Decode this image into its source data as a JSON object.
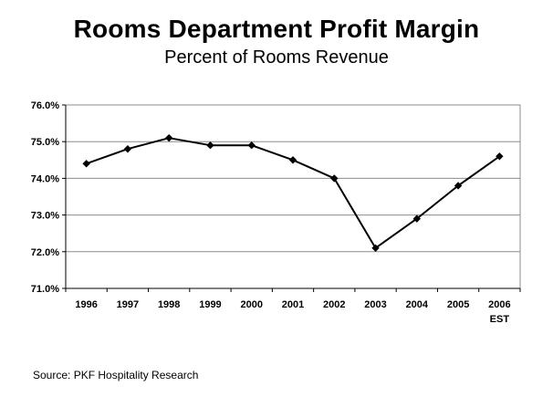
{
  "header": {
    "title": "Rooms Department Profit Margin",
    "subtitle": "Percent of Rooms Revenue"
  },
  "footer": {
    "source": "Source: PKF Hospitality Research"
  },
  "chart_data": {
    "type": "line",
    "title": "Rooms Department Profit Margin",
    "subtitle": "Percent of Rooms Revenue",
    "xlabel": "",
    "ylabel": "",
    "categories": [
      "1996",
      "1997",
      "1998",
      "1999",
      "2000",
      "2001",
      "2002",
      "2003",
      "2004",
      "2005",
      "2006"
    ],
    "category_sublabels": [
      "",
      "",
      "",
      "",
      "",
      "",
      "",
      "",
      "",
      "",
      "EST"
    ],
    "series": [
      {
        "values": [
          74.4,
          74.8,
          75.1,
          74.9,
          74.9,
          74.5,
          74.0,
          72.1,
          72.9,
          73.8,
          74.6
        ]
      }
    ],
    "ylim": [
      71.0,
      76.0
    ],
    "yticks": [
      71.0,
      72.0,
      73.0,
      74.0,
      75.0,
      76.0
    ],
    "ytick_labels": [
      "71.0%",
      "72.0%",
      "73.0%",
      "74.0%",
      "75.0%",
      "76.0%"
    ],
    "grid": true,
    "line_color": "#000000",
    "grid_color": "#8c8c8c",
    "marker": "diamond"
  }
}
